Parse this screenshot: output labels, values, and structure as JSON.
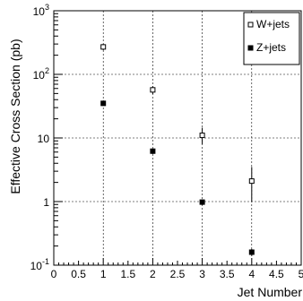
{
  "chart_data": {
    "type": "scatter",
    "title": "",
    "xlabel": "Jet Number",
    "ylabel": "Effective Cross Section (pb)",
    "xlim": [
      0,
      5
    ],
    "ylim": [
      0.1,
      1000
    ],
    "yscale": "log",
    "grid": true,
    "legend_position": "top-right",
    "x_ticks": [
      {
        "value": 0,
        "label": "0"
      },
      {
        "value": 0.5,
        "label": "0.5"
      },
      {
        "value": 1,
        "label": "1"
      },
      {
        "value": 1.5,
        "label": "1.5"
      },
      {
        "value": 2,
        "label": "2"
      },
      {
        "value": 2.5,
        "label": "2.5"
      },
      {
        "value": 3,
        "label": "3"
      },
      {
        "value": 3.5,
        "label": "3.5"
      },
      {
        "value": 4,
        "label": "4"
      },
      {
        "value": 4.5,
        "label": "4.5"
      },
      {
        "value": 5,
        "label": "5"
      }
    ],
    "y_ticks": [
      {
        "value": 0.1,
        "base": "10",
        "exp": "-1"
      },
      {
        "value": 1,
        "base": "1",
        "exp": ""
      },
      {
        "value": 10,
        "base": "10",
        "exp": ""
      },
      {
        "value": 100,
        "base": "10",
        "exp": "2"
      },
      {
        "value": 1000,
        "base": "10",
        "exp": "3"
      }
    ],
    "series": [
      {
        "name": "W+jets",
        "marker": "open-square",
        "color": "#000000",
        "points": [
          {
            "x": 1,
            "y": 270,
            "err_low": 30,
            "err_high": 30
          },
          {
            "x": 2,
            "y": 57,
            "err_low": 8,
            "err_high": 8
          },
          {
            "x": 3,
            "y": 11,
            "err_low": 3,
            "err_high": 3.5
          },
          {
            "x": 4,
            "y": 2.1,
            "err_low": 1.1,
            "err_high": 1.4
          }
        ]
      },
      {
        "name": "Z+jets",
        "marker": "filled-square",
        "color": "#000000",
        "points": [
          {
            "x": 1,
            "y": 35,
            "err_low": 3,
            "err_high": 3
          },
          {
            "x": 2,
            "y": 6.2,
            "err_low": 0.6,
            "err_high": 0.6
          },
          {
            "x": 3,
            "y": 0.98,
            "err_low": 0.1,
            "err_high": 0.1
          },
          {
            "x": 4,
            "y": 0.16,
            "err_low": 0.02,
            "err_high": 0.02
          }
        ]
      }
    ]
  }
}
